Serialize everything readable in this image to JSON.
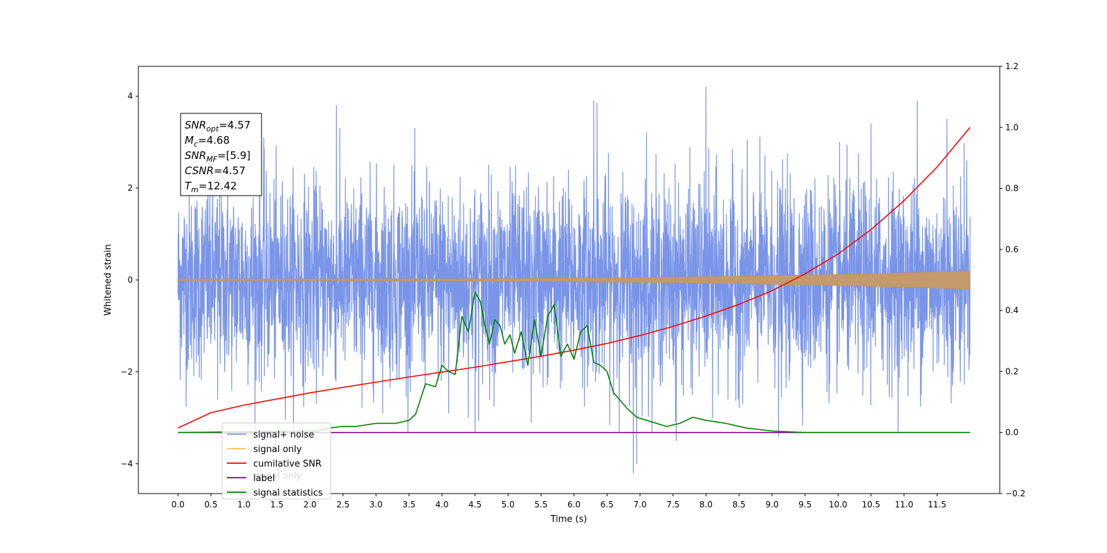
{
  "chart_data": {
    "type": "line",
    "title": "",
    "xlabel": "Time (s)",
    "ylabel_left": "Whitened strain",
    "ylabel_right": "",
    "xlim": [
      -0.6,
      12.45
    ],
    "ylim_left": [
      -4.65,
      4.65
    ],
    "ylim_right": [
      -0.2,
      1.2
    ],
    "x_ticks": [
      "0.0",
      "0.5",
      "1.0",
      "1.5",
      "2.0",
      "2.5",
      "3.0",
      "3.5",
      "4.0",
      "4.5",
      "5.0",
      "5.5",
      "6.0",
      "6.5",
      "7.0",
      "7.5",
      "8.0",
      "8.5",
      "9.0",
      "9.5",
      "10.0",
      "10.5",
      "11.0",
      "11.5"
    ],
    "y_ticks_left": [
      "−4",
      "−2",
      "0",
      "2",
      "4"
    ],
    "y_ticks_right": [
      "−0.2",
      "0.0",
      "0.2",
      "0.4",
      "0.6",
      "0.8",
      "1.0",
      "1.2"
    ],
    "annotation": {
      "lines": [
        {
          "sym": "SNR",
          "sub": "opt",
          "val": "=4.57"
        },
        {
          "sym": "M",
          "sub": "c",
          "val": "=4.68"
        },
        {
          "sym": "SNR",
          "sub": "MF",
          "val": "=[5.9]"
        },
        {
          "sym": "CSNR",
          "sub": "",
          "val": "=4.57"
        },
        {
          "sym": "T",
          "sub": "m",
          "val": "=12.42"
        }
      ]
    },
    "legend": {
      "placement": "lower-left",
      "entries": [
        {
          "label": "signal+ noise",
          "color": "#7a95e8"
        },
        {
          "label": "signal only",
          "color": "#ffc34d"
        },
        {
          "label": "cumilative SNR",
          "color": "#ff0000"
        },
        {
          "label": "label",
          "color": "#800080"
        },
        {
          "label": "signal statistics",
          "color": "#008000"
        }
      ],
      "ghost_label": "signal only"
    },
    "series": [
      {
        "name": "signal+ noise",
        "axis": "left",
        "kind": "noise",
        "x_range": [
          0.0,
          12.0
        ],
        "std": 1.0,
        "color": "#7a95e8"
      },
      {
        "name": "signal only",
        "axis": "left",
        "kind": "chirp",
        "amp_start": 0.02,
        "amp_end": 0.2,
        "color": "#c49a6c"
      },
      {
        "name": "cumilative SNR",
        "axis": "right",
        "color": "#ff0000",
        "x": [
          0.0,
          0.5,
          1.0,
          1.5,
          2.0,
          2.5,
          3.0,
          3.5,
          4.0,
          4.5,
          5.0,
          5.5,
          6.0,
          6.5,
          7.0,
          7.5,
          8.0,
          8.5,
          9.0,
          9.5,
          10.0,
          10.5,
          11.0,
          11.5,
          12.0
        ],
        "y": [
          0.015,
          0.065,
          0.09,
          0.11,
          0.13,
          0.148,
          0.165,
          0.182,
          0.198,
          0.214,
          0.232,
          0.25,
          0.27,
          0.292,
          0.318,
          0.348,
          0.382,
          0.42,
          0.465,
          0.52,
          0.585,
          0.665,
          0.76,
          0.87,
          1.0
        ]
      },
      {
        "name": "label",
        "axis": "right",
        "color": "#800080",
        "x": [
          0.0,
          12.0
        ],
        "y": [
          0.0,
          0.0
        ]
      },
      {
        "name": "signal statistics",
        "axis": "right",
        "color": "#008000",
        "x": [
          0.0,
          2.1,
          2.3,
          2.5,
          2.7,
          3.0,
          3.3,
          3.5,
          3.6,
          3.75,
          3.9,
          4.0,
          4.1,
          4.2,
          4.3,
          4.4,
          4.5,
          4.58,
          4.65,
          4.72,
          4.8,
          4.88,
          4.95,
          5.03,
          5.1,
          5.2,
          5.3,
          5.4,
          5.5,
          5.6,
          5.7,
          5.8,
          5.9,
          6.0,
          6.1,
          6.2,
          6.3,
          6.4,
          6.5,
          6.6,
          6.8,
          6.95,
          7.1,
          7.4,
          7.6,
          7.8,
          8.0,
          8.3,
          8.6,
          9.0,
          9.5,
          10.5,
          12.0
        ],
        "y": [
          0.0,
          0.005,
          0.015,
          0.02,
          0.02,
          0.03,
          0.03,
          0.04,
          0.06,
          0.16,
          0.15,
          0.22,
          0.2,
          0.19,
          0.38,
          0.33,
          0.46,
          0.43,
          0.35,
          0.29,
          0.37,
          0.35,
          0.29,
          0.32,
          0.26,
          0.33,
          0.22,
          0.37,
          0.25,
          0.38,
          0.42,
          0.25,
          0.29,
          0.24,
          0.33,
          0.35,
          0.23,
          0.22,
          0.2,
          0.13,
          0.08,
          0.05,
          0.04,
          0.02,
          0.03,
          0.05,
          0.04,
          0.03,
          0.015,
          0.005,
          0.0,
          0.0,
          0.0
        ]
      }
    ],
    "noise_spikes": [
      {
        "x": 0.6,
        "y": -2.6
      },
      {
        "x": 1.3,
        "y": 3.1
      },
      {
        "x": 2.4,
        "y": 3.8
      },
      {
        "x": 3.1,
        "y": -2.9
      },
      {
        "x": 4.1,
        "y": -2.9
      },
      {
        "x": 4.5,
        "y": -3.3
      },
      {
        "x": 5.35,
        "y": -3.1
      },
      {
        "x": 6.3,
        "y": 3.9
      },
      {
        "x": 6.35,
        "y": 3.85
      },
      {
        "x": 6.9,
        "y": -4.2
      },
      {
        "x": 6.95,
        "y": -4.0
      },
      {
        "x": 7.1,
        "y": 3.2
      },
      {
        "x": 7.55,
        "y": -3.5
      },
      {
        "x": 8.0,
        "y": 4.2
      },
      {
        "x": 8.1,
        "y": -3.0
      },
      {
        "x": 9.1,
        "y": -3.4
      },
      {
        "x": 10.5,
        "y": 3.4
      },
      {
        "x": 11.2,
        "y": 3.9
      },
      {
        "x": 11.65,
        "y": 3.5
      },
      {
        "x": 11.95,
        "y": 2.6
      }
    ]
  }
}
